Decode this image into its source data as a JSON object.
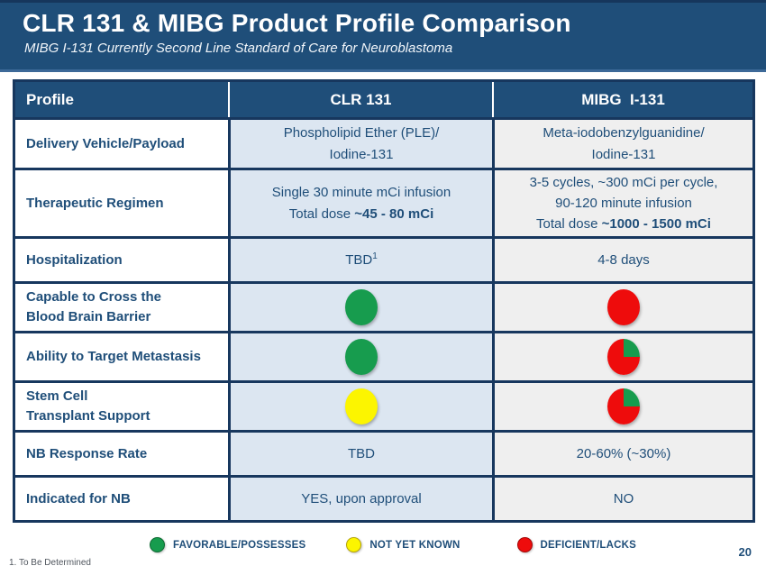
{
  "header": {
    "title": "CLR 131 & MIBG Product Profile Comparison",
    "subtitle": "MIBG I-131 Currently Second Line Standard of Care for Neuroblastoma"
  },
  "table": {
    "headers": [
      "Profile",
      "CLR 131",
      "MIBG  I-131"
    ],
    "rows": [
      {
        "label_lines": [
          "Delivery Vehicle/Payload"
        ],
        "clr": {
          "lines": [
            [
              {
                "t": "Phospholipid Ether (PLE)/"
              }
            ],
            [
              {
                "t": "Iodine-131"
              }
            ]
          ]
        },
        "mibg": {
          "lines": [
            [
              {
                "t": "Meta-iodobenzylguanidine/"
              }
            ],
            [
              {
                "t": "Iodine-131"
              }
            ]
          ]
        }
      },
      {
        "label_lines": [
          "Therapeutic Regimen"
        ],
        "clr": {
          "lines": [
            [
              {
                "t": "Single 30 minute mCi infusion"
              }
            ],
            [
              {
                "t": "Total dose "
              },
              {
                "t": "~45 - 80 mCi",
                "bold": true
              }
            ]
          ]
        },
        "mibg": {
          "lines": [
            [
              {
                "t": "3-5 cycles, ~300 mCi per cycle,"
              }
            ],
            [
              {
                "t": "90-120 minute infusion"
              }
            ],
            [
              {
                "t": "Total dose "
              },
              {
                "t": "~1000 - 1500 mCi",
                "bold": true
              }
            ]
          ]
        }
      },
      {
        "label_lines": [
          "Hospitalization"
        ],
        "clr": {
          "lines": [
            [
              {
                "t": "TBD"
              },
              {
                "t": "1",
                "sup": true
              }
            ]
          ]
        },
        "mibg": {
          "lines": [
            [
              {
                "t": "4-8 days"
              }
            ]
          ]
        }
      },
      {
        "label_lines": [
          "Capable to Cross the",
          "Blood Brain Barrier"
        ],
        "clr": {
          "icon": "green-circle"
        },
        "mibg": {
          "icon": "red-circle"
        }
      },
      {
        "label_lines": [
          "Ability to Target Metastasis"
        ],
        "clr": {
          "icon": "green-circle"
        },
        "mibg": {
          "icon": "pie-red-green"
        }
      },
      {
        "label_lines": [
          "Stem Cell",
          "Transplant  Support"
        ],
        "clr": {
          "icon": "yellow-circle"
        },
        "mibg": {
          "icon": "pie-red-green"
        }
      },
      {
        "label_lines": [
          "NB Response Rate"
        ],
        "clr": {
          "lines": [
            [
              {
                "t": "TBD"
              }
            ]
          ]
        },
        "mibg": {
          "lines": [
            [
              {
                "t": "20-60% (~30%)"
              }
            ]
          ]
        }
      },
      {
        "label_lines": [
          "Indicated for NB"
        ],
        "clr": {
          "lines": [
            [
              {
                "t": "YES, upon approval"
              }
            ]
          ]
        },
        "mibg": {
          "lines": [
            [
              {
                "t": "NO"
              }
            ]
          ]
        }
      }
    ]
  },
  "legend": {
    "items": [
      {
        "icon": "green-circle",
        "label": "FAVORABLE/POSSESSES"
      },
      {
        "icon": "yellow-circle",
        "label": "NOT YET KNOWN"
      },
      {
        "icon": "red-circle",
        "label": "DEFICIENT/LACKS"
      }
    ]
  },
  "footnote": "1. To Be Determined",
  "page_number": "20",
  "colors": {
    "banner_bg": "#1F4E79",
    "banner_top_edge": "#16365C",
    "banner_bottom_edge": "#3D6998",
    "header_bg": "#1F4E79",
    "border": "#17375E",
    "text_navy": "#1F4E79",
    "clr_cell_bg": "#DCE6F1",
    "mibg_cell_bg": "#EFEFEF",
    "green": "#179C4E",
    "yellow": "#FCF500",
    "red": "#EE0C0C"
  }
}
